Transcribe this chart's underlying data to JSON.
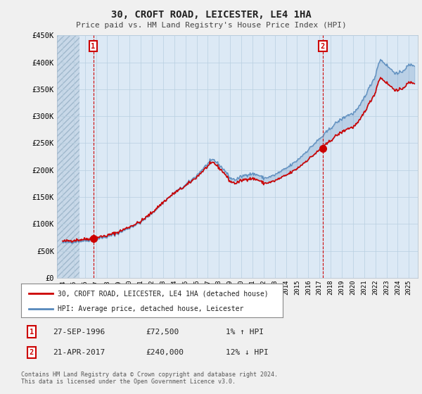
{
  "title": "30, CROFT ROAD, LEICESTER, LE4 1HA",
  "subtitle": "Price paid vs. HM Land Registry's House Price Index (HPI)",
  "legend_label_red": "30, CROFT ROAD, LEICESTER, LE4 1HA (detached house)",
  "legend_label_blue": "HPI: Average price, detached house, Leicester",
  "annotation1_box": "1",
  "annotation1_date": "27-SEP-1996",
  "annotation1_price": "£72,500",
  "annotation1_hpi": "1% ↑ HPI",
  "annotation2_box": "2",
  "annotation2_date": "21-APR-2017",
  "annotation2_price": "£240,000",
  "annotation2_hpi": "12% ↓ HPI",
  "footnote": "Contains HM Land Registry data © Crown copyright and database right 2024.\nThis data is licensed under the Open Government Licence v3.0.",
  "ylim": [
    0,
    450000
  ],
  "yticks": [
    0,
    50000,
    100000,
    150000,
    200000,
    250000,
    300000,
    350000,
    400000,
    450000
  ],
  "ytick_labels": [
    "£0",
    "£50K",
    "£100K",
    "£150K",
    "£200K",
    "£250K",
    "£300K",
    "£350K",
    "£400K",
    "£450K"
  ],
  "xtick_years": [
    1994,
    1995,
    1996,
    1997,
    1998,
    1999,
    2000,
    2001,
    2002,
    2003,
    2004,
    2005,
    2006,
    2007,
    2008,
    2009,
    2010,
    2011,
    2012,
    2013,
    2014,
    2015,
    2016,
    2017,
    2018,
    2019,
    2020,
    2021,
    2022,
    2023,
    2024,
    2025
  ],
  "xlim": [
    1993.5,
    2025.8
  ],
  "sale1_x": 1996.75,
  "sale1_y": 72500,
  "sale2_x": 2017.29,
  "sale2_y": 240000,
  "bg_color": "#f0f0f0",
  "plot_bg_color": "#dce9f5",
  "hatch_bg_color": "#c8d8e8",
  "red_color": "#cc0000",
  "blue_color": "#5588bb",
  "grid_color": "#b8cfe0",
  "hatch_end_x": 1995.5
}
